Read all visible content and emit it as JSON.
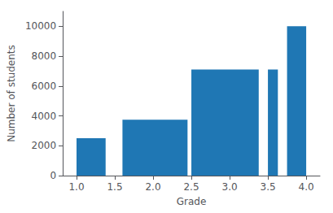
{
  "chart_data": {
    "type": "bar",
    "x_start": [
      1.0,
      1.6,
      2.5,
      3.5,
      3.75
    ],
    "x_end": [
      1.38,
      2.45,
      3.38,
      3.63,
      4.0
    ],
    "values": [
      2500,
      3750,
      7100,
      7100,
      10000
    ],
    "color": "#1f77b4",
    "xlabel": "Grade",
    "ylabel": "Number of students",
    "xlim": [
      0.82,
      4.18
    ],
    "ylim": [
      0,
      11000
    ],
    "xticks": [
      {
        "value": 1,
        "label": "1.0"
      },
      1.5,
      {
        "value": 2,
        "label": "2.0"
      },
      2.5,
      {
        "value": 3,
        "label": "3.0"
      },
      3.5,
      {
        "value": 4,
        "label": "4.0"
      }
    ],
    "yticks": [
      0,
      2000,
      4000,
      6000,
      8000,
      10000
    ],
    "grid": false
  }
}
